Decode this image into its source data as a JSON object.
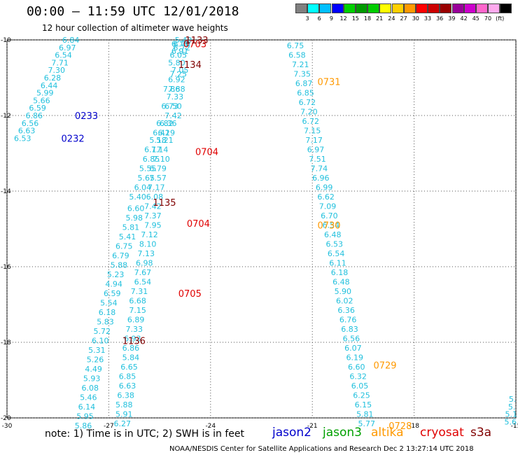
{
  "header": {
    "title": "00:00 – 11:59 UTC 12/01/2018",
    "subtitle": "12 hour collection of altimeter wave heights"
  },
  "legend": {
    "colors": [
      "#808080",
      "#00ffff",
      "#00bfff",
      "#0000ff",
      "#00d000",
      "#009900",
      "#00cc00",
      "#ffff00",
      "#ffd000",
      "#ff9900",
      "#ff0000",
      "#cc0000",
      "#990000",
      "#990099",
      "#cc00cc",
      "#ff66cc",
      "#ffaaee",
      "#000000"
    ],
    "ticks": [
      "3",
      "6",
      "9",
      "12",
      "15",
      "18",
      "21",
      "24",
      "27",
      "30",
      "33",
      "36",
      "39",
      "42",
      "45",
      "70",
      "(ft)"
    ]
  },
  "note": "note: 1) Time is in UTC; 2) SWH is in feet",
  "satellites": [
    {
      "name": "jason2",
      "color": "#0000cc"
    },
    {
      "name": "jason3",
      "color": "#00a000"
    },
    {
      "name": "altika",
      "color": "#ff9900"
    },
    {
      "name": "cryosat",
      "color": "#e00000"
    },
    {
      "name": "s3a",
      "color": "#800000"
    }
  ],
  "footer": "NOAA/NESDIS Center for Satellite Applications and Research   Dec  2 13:27:14 UTC 2018",
  "chart_data": {
    "type": "scatter",
    "xlim": [
      -30,
      -15
    ],
    "ylim": [
      -20,
      -10
    ],
    "x_ticks": [
      "-30",
      "-27",
      "-24",
      "-21",
      "-18",
      "-15"
    ],
    "y_ticks": [
      "-10",
      "-12",
      "-14",
      "-16",
      "-18",
      "-20"
    ],
    "grid": true,
    "value_color": "#22c0dd",
    "series": [
      {
        "name": "track-1",
        "points": [
          {
            "x": -28.12,
            "y": -10.0,
            "v": "6.84"
          },
          {
            "x": -28.22,
            "y": -10.2,
            "v": "6.97"
          },
          {
            "x": -28.34,
            "y": -10.4,
            "v": "6.54"
          },
          {
            "x": -28.44,
            "y": -10.6,
            "v": "7.71"
          },
          {
            "x": -28.54,
            "y": -10.8,
            "v": "7.30"
          },
          {
            "x": -28.66,
            "y": -11.0,
            "v": "6.28"
          },
          {
            "x": -28.76,
            "y": -11.2,
            "v": "6.44"
          },
          {
            "x": -28.88,
            "y": -11.4,
            "v": "5.99"
          },
          {
            "x": -28.98,
            "y": -11.6,
            "v": "5.66"
          },
          {
            "x": -29.1,
            "y": -11.8,
            "v": "6.59"
          },
          {
            "x": -29.2,
            "y": -12.0,
            "v": "6.86"
          },
          {
            "x": -29.32,
            "y": -12.2,
            "v": "6.56"
          },
          {
            "x": -29.42,
            "y": -12.4,
            "v": "6.63"
          },
          {
            "x": -29.54,
            "y": -12.6,
            "v": "6.53"
          }
        ]
      },
      {
        "name": "track-2",
        "points": [
          {
            "x": -24.8,
            "y": -10.0,
            "v": "5.49"
          },
          {
            "x": -24.85,
            "y": -10.1,
            "v": "6.76"
          },
          {
            "x": -24.85,
            "y": -10.2,
            "v": "6.72"
          },
          {
            "x": -24.9,
            "y": -10.3,
            "v": "6.91"
          },
          {
            "x": -24.95,
            "y": -10.4,
            "v": "6.05"
          },
          {
            "x": -25.0,
            "y": -10.6,
            "v": "5.80"
          },
          {
            "x": -24.9,
            "y": -10.8,
            "v": "7.05"
          },
          {
            "x": -25.0,
            "y": -11.05,
            "v": "6.92"
          },
          {
            "x": -25.0,
            "y": -11.3,
            "v": "7.88"
          },
          {
            "x": -25.05,
            "y": -11.5,
            "v": "7.33"
          },
          {
            "x": -25.1,
            "y": -11.75,
            "v": "6.50"
          },
          {
            "x": -25.1,
            "y": -12.0,
            "v": "7.42"
          },
          {
            "x": -25.25,
            "y": -12.2,
            "v": "6.36"
          },
          {
            "x": -25.3,
            "y": -12.45,
            "v": "6.19"
          },
          {
            "x": -25.35,
            "y": -12.65,
            "v": "5.21"
          },
          {
            "x": -25.5,
            "y": -12.9,
            "v": "7.14"
          },
          {
            "x": -25.45,
            "y": -13.15,
            "v": "7.10"
          },
          {
            "x": -25.55,
            "y": -13.4,
            "v": "6.79"
          },
          {
            "x": -25.55,
            "y": -13.65,
            "v": "7.57"
          },
          {
            "x": -25.6,
            "y": -13.9,
            "v": "7.17"
          },
          {
            "x": -25.65,
            "y": -14.15,
            "v": "6.08"
          },
          {
            "x": -25.7,
            "y": -14.4,
            "v": "7.42"
          },
          {
            "x": -25.7,
            "y": -14.65,
            "v": "7.37"
          },
          {
            "x": -25.7,
            "y": -14.9,
            "v": "7.95"
          },
          {
            "x": -25.8,
            "y": -15.15,
            "v": "7.12"
          },
          {
            "x": -25.85,
            "y": -15.4,
            "v": "8.10"
          },
          {
            "x": -25.9,
            "y": -15.65,
            "v": "7.13"
          },
          {
            "x": -25.95,
            "y": -15.9,
            "v": "6.98"
          },
          {
            "x": -26.0,
            "y": -16.15,
            "v": "7.67"
          },
          {
            "x": -26.0,
            "y": -16.4,
            "v": "6.54"
          },
          {
            "x": -26.1,
            "y": -16.65,
            "v": "7.31"
          },
          {
            "x": -26.15,
            "y": -16.9,
            "v": "6.68"
          },
          {
            "x": -26.15,
            "y": -17.15,
            "v": "7.15"
          },
          {
            "x": -26.2,
            "y": -17.4,
            "v": "6.89"
          },
          {
            "x": -26.25,
            "y": -17.65,
            "v": "7.33"
          },
          {
            "x": -26.3,
            "y": -17.9,
            "v": "6.93"
          },
          {
            "x": -26.35,
            "y": -18.15,
            "v": "6.86"
          },
          {
            "x": -26.35,
            "y": -18.4,
            "v": "5.84"
          },
          {
            "x": -26.4,
            "y": -18.65,
            "v": "6.65"
          },
          {
            "x": -26.45,
            "y": -18.9,
            "v": "6.85"
          },
          {
            "x": -26.45,
            "y": -19.15,
            "v": "6.63"
          },
          {
            "x": -26.5,
            "y": -19.4,
            "v": "6.38"
          },
          {
            "x": -26.55,
            "y": -19.65,
            "v": "5.88"
          },
          {
            "x": -26.55,
            "y": -19.9,
            "v": "5.91"
          },
          {
            "x": -26.6,
            "y": -20.15,
            "v": "6.27"
          }
        ]
      },
      {
        "name": "track-3",
        "points": [
          {
            "x": -24.9,
            "y": -10.1,
            "v": "6.78"
          },
          {
            "x": -24.95,
            "y": -10.9,
            "v": "7.25"
          },
          {
            "x": -25.15,
            "y": -11.3,
            "v": "7.86"
          },
          {
            "x": -25.2,
            "y": -11.75,
            "v": "6.73"
          },
          {
            "x": -25.35,
            "y": -12.2,
            "v": "6.82"
          },
          {
            "x": -25.45,
            "y": -12.45,
            "v": "6.42"
          },
          {
            "x": -25.55,
            "y": -12.65,
            "v": "5.18"
          },
          {
            "x": -25.7,
            "y": -12.9,
            "v": "6.17"
          },
          {
            "x": -25.75,
            "y": -13.15,
            "v": "6.85"
          },
          {
            "x": -25.85,
            "y": -13.4,
            "v": "5.55"
          },
          {
            "x": -25.9,
            "y": -13.65,
            "v": "5.65"
          },
          {
            "x": -26.0,
            "y": -13.9,
            "v": "6.04"
          },
          {
            "x": -26.15,
            "y": -14.15,
            "v": "5.40"
          },
          {
            "x": -26.2,
            "y": -14.45,
            "v": "6.60"
          },
          {
            "x": -26.25,
            "y": -14.7,
            "v": "5.98"
          },
          {
            "x": -26.35,
            "y": -14.95,
            "v": "5.81"
          },
          {
            "x": -26.45,
            "y": -15.2,
            "v": "5.41"
          },
          {
            "x": -26.55,
            "y": -15.45,
            "v": "6.75"
          },
          {
            "x": -26.65,
            "y": -15.7,
            "v": "6.79"
          },
          {
            "x": -26.7,
            "y": -15.95,
            "v": "5.88"
          },
          {
            "x": -26.8,
            "y": -16.2,
            "v": "5.23"
          },
          {
            "x": -26.85,
            "y": -16.45,
            "v": "4.94"
          },
          {
            "x": -26.9,
            "y": -16.7,
            "v": "6.59"
          },
          {
            "x": -27.0,
            "y": -16.95,
            "v": "5.54"
          },
          {
            "x": -27.05,
            "y": -17.2,
            "v": "6.18"
          },
          {
            "x": -27.1,
            "y": -17.45,
            "v": "5.83"
          },
          {
            "x": -27.2,
            "y": -17.7,
            "v": "5.72"
          },
          {
            "x": -27.25,
            "y": -17.95,
            "v": "6.10"
          },
          {
            "x": -27.35,
            "y": -18.2,
            "v": "5.31"
          },
          {
            "x": -27.4,
            "y": -18.45,
            "v": "5.26"
          },
          {
            "x": -27.45,
            "y": -18.7,
            "v": "4.49"
          },
          {
            "x": -27.5,
            "y": -18.95,
            "v": "5.93"
          },
          {
            "x": -27.55,
            "y": -19.2,
            "v": "6.08"
          },
          {
            "x": -27.6,
            "y": -19.45,
            "v": "5.46"
          },
          {
            "x": -27.65,
            "y": -19.7,
            "v": "6.14"
          },
          {
            "x": -27.7,
            "y": -19.95,
            "v": "5.95"
          },
          {
            "x": -27.75,
            "y": -20.2,
            "v": "5.86"
          }
        ]
      },
      {
        "name": "track-4",
        "points": [
          {
            "x": -21.5,
            "y": -10.15,
            "v": "6.75"
          },
          {
            "x": -21.45,
            "y": -10.4,
            "v": "6.58"
          },
          {
            "x": -21.35,
            "y": -10.65,
            "v": "7.21"
          },
          {
            "x": -21.3,
            "y": -10.9,
            "v": "7.35"
          },
          {
            "x": -21.25,
            "y": -11.15,
            "v": "6.87"
          },
          {
            "x": -21.2,
            "y": -11.4,
            "v": "6.85"
          },
          {
            "x": -21.15,
            "y": -11.65,
            "v": "6.72"
          },
          {
            "x": -21.1,
            "y": -11.9,
            "v": "7.20"
          },
          {
            "x": -21.05,
            "y": -12.15,
            "v": "6.72"
          },
          {
            "x": -21.0,
            "y": -12.4,
            "v": "7.15"
          },
          {
            "x": -20.95,
            "y": -12.65,
            "v": "7.17"
          },
          {
            "x": -20.9,
            "y": -12.9,
            "v": "6.97"
          },
          {
            "x": -20.85,
            "y": -13.15,
            "v": "7.51"
          },
          {
            "x": -20.8,
            "y": -13.4,
            "v": "7.74"
          },
          {
            "x": -20.75,
            "y": -13.65,
            "v": "6.96"
          },
          {
            "x": -20.65,
            "y": -13.9,
            "v": "6.99"
          },
          {
            "x": -20.6,
            "y": -14.15,
            "v": "6.62"
          },
          {
            "x": -20.55,
            "y": -14.4,
            "v": "7.09"
          },
          {
            "x": -20.5,
            "y": -14.65,
            "v": "6.70"
          },
          {
            "x": -20.45,
            "y": -14.9,
            "v": "6.54"
          },
          {
            "x": -20.4,
            "y": -15.15,
            "v": "6.48"
          },
          {
            "x": -20.35,
            "y": -15.4,
            "v": "6.53"
          },
          {
            "x": -20.3,
            "y": -15.65,
            "v": "6.54"
          },
          {
            "x": -20.25,
            "y": -15.9,
            "v": "6.11"
          },
          {
            "x": -20.2,
            "y": -16.15,
            "v": "6.18"
          },
          {
            "x": -20.15,
            "y": -16.4,
            "v": "6.48"
          },
          {
            "x": -20.1,
            "y": -16.65,
            "v": "5.90"
          },
          {
            "x": -20.05,
            "y": -16.9,
            "v": "6.02"
          },
          {
            "x": -20.0,
            "y": -17.15,
            "v": "6.36"
          },
          {
            "x": -19.95,
            "y": -17.4,
            "v": "6.76"
          },
          {
            "x": -19.9,
            "y": -17.65,
            "v": "6.83"
          },
          {
            "x": -19.85,
            "y": -17.9,
            "v": "6.56"
          },
          {
            "x": -19.8,
            "y": -18.15,
            "v": "6.07"
          },
          {
            "x": -19.75,
            "y": -18.4,
            "v": "6.19"
          },
          {
            "x": -19.7,
            "y": -18.65,
            "v": "6.60"
          },
          {
            "x": -19.65,
            "y": -18.9,
            "v": "6.32"
          },
          {
            "x": -19.6,
            "y": -19.15,
            "v": "6.05"
          },
          {
            "x": -19.55,
            "y": -19.4,
            "v": "6.25"
          },
          {
            "x": -19.5,
            "y": -19.65,
            "v": "6.15"
          },
          {
            "x": -19.45,
            "y": -19.9,
            "v": "5.81"
          },
          {
            "x": -19.4,
            "y": -20.15,
            "v": "5.77"
          }
        ]
      },
      {
        "name": "track-5",
        "points": [
          {
            "x": -15.1,
            "y": -19.5,
            "v": "5."
          },
          {
            "x": -15.12,
            "y": -19.7,
            "v": "5."
          },
          {
            "x": -15.14,
            "y": -19.9,
            "v": "5.1"
          },
          {
            "x": -15.16,
            "y": -20.1,
            "v": "5.6"
          }
        ]
      }
    ],
    "pass_labels": [
      {
        "x": -28.0,
        "y": -12.0,
        "text": "0233",
        "sat": "jason2"
      },
      {
        "x": -28.4,
        "y": -12.6,
        "text": "0232",
        "sat": "jason2"
      },
      {
        "x": -20.85,
        "y": -11.1,
        "text": "0731",
        "sat": "altika"
      },
      {
        "x": -20.85,
        "y": -14.9,
        "text": "0730",
        "sat": "altika"
      },
      {
        "x": -19.2,
        "y": -18.6,
        "text": "0729",
        "sat": "altika"
      },
      {
        "x": -18.75,
        "y": -20.2,
        "text": "0728",
        "sat": "altika"
      },
      {
        "x": -24.8,
        "y": -10.1,
        "text": "0703",
        "sat": "cryosat"
      },
      {
        "x": -24.45,
        "y": -12.95,
        "text": "0704",
        "sat": "cryosat"
      },
      {
        "x": -24.7,
        "y": -14.85,
        "text": "0704",
        "sat": "cryosat"
      },
      {
        "x": -24.95,
        "y": -16.7,
        "text": "0705",
        "sat": "cryosat"
      },
      {
        "x": -24.75,
        "y": -10.0,
        "text": "1133",
        "sat": "s3a"
      },
      {
        "x": -24.95,
        "y": -10.65,
        "text": "1134",
        "sat": "s3a"
      },
      {
        "x": -25.7,
        "y": -14.3,
        "text": "1135",
        "sat": "s3a"
      },
      {
        "x": -26.6,
        "y": -17.95,
        "text": "1136",
        "sat": "s3a"
      }
    ]
  }
}
